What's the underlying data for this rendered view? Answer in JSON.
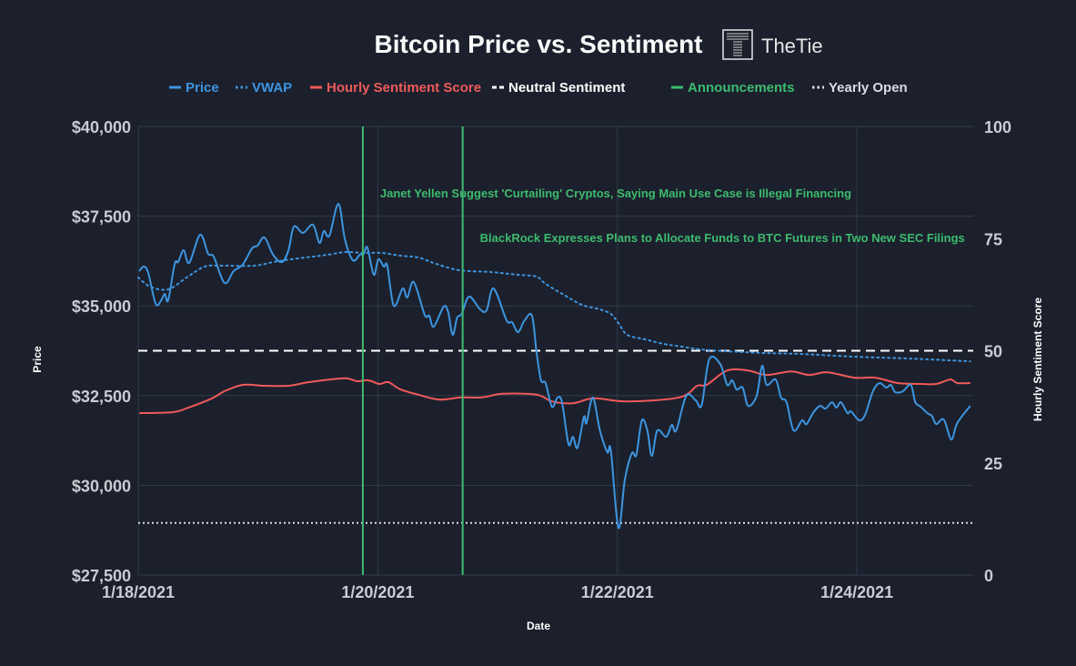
{
  "chart_data": {
    "type": "line",
    "title": "Bitcoin Price vs. Sentiment",
    "logo_text": "TheTie",
    "xlabel": "Date",
    "ylabel": "Price",
    "y2label": "Hourly Sentiment Score",
    "x_units": "hours since 1/18/2021 00:00",
    "xlim": [
      0,
      167.3
    ],
    "ylim": [
      27500,
      40000
    ],
    "y2lim": [
      0,
      100
    ],
    "grid": true,
    "legend_position": "top",
    "x_ticks": [
      {
        "value": 0,
        "label": "1/18/2021"
      },
      {
        "value": 48,
        "label": "1/20/2021"
      },
      {
        "value": 96,
        "label": "1/22/2021"
      },
      {
        "value": 144,
        "label": "1/24/2021"
      }
    ],
    "y_ticks": [
      {
        "value": 40000,
        "label": "$40,000"
      },
      {
        "value": 37500,
        "label": "$37,500"
      },
      {
        "value": 35000,
        "label": "$35,000"
      },
      {
        "value": 32500,
        "label": "$32,500"
      },
      {
        "value": 30000,
        "label": "$30,000"
      },
      {
        "value": 27500,
        "label": "$27,500"
      }
    ],
    "y2_ticks": [
      {
        "value": 100,
        "label": "100"
      },
      {
        "value": 75,
        "label": "75"
      },
      {
        "value": 50,
        "label": "50"
      },
      {
        "value": 25,
        "label": "25"
      },
      {
        "value": 0,
        "label": "0"
      }
    ],
    "legend": [
      {
        "name": "Price",
        "style": "solid",
        "color": "#3d95e0"
      },
      {
        "name": "VWAP",
        "style": "dotted",
        "color": "#3d95e0"
      },
      {
        "name": "Hourly Sentiment Score",
        "style": "solid",
        "color": "#f05a5a"
      },
      {
        "name": "Neutral Sentiment",
        "style": "dashed",
        "color": "#ffffff"
      },
      {
        "name": "Announcements",
        "style": "solid",
        "color": "#3dbb6e"
      },
      {
        "name": "Yearly Open",
        "style": "dotted",
        "color": "#d9dce2"
      }
    ],
    "series": [
      {
        "name": "Price",
        "axis": "left",
        "color": "#3d95e0",
        "points": [
          [
            0.2,
            35968
          ],
          [
            1.1,
            36095
          ],
          [
            2.0,
            35917
          ],
          [
            3.5,
            35055
          ],
          [
            4.6,
            35156
          ],
          [
            5.3,
            35334
          ],
          [
            6.0,
            35156
          ],
          [
            7.3,
            36171
          ],
          [
            8.0,
            36221
          ],
          [
            9.1,
            36551
          ],
          [
            10.2,
            36196
          ],
          [
            12.4,
            36982
          ],
          [
            14.0,
            36450
          ],
          [
            15.1,
            36374
          ],
          [
            17.3,
            35638
          ],
          [
            19.1,
            35968
          ],
          [
            20.9,
            36145
          ],
          [
            22.8,
            36602
          ],
          [
            23.9,
            36678
          ],
          [
            25.3,
            36906
          ],
          [
            27.0,
            36424
          ],
          [
            28.8,
            36221
          ],
          [
            30.1,
            36551
          ],
          [
            31.2,
            37210
          ],
          [
            33.0,
            37033
          ],
          [
            35.0,
            37261
          ],
          [
            36.3,
            36754
          ],
          [
            37.2,
            37084
          ],
          [
            38.3,
            36957
          ],
          [
            40.1,
            37844
          ],
          [
            41.4,
            36855
          ],
          [
            43.0,
            36272
          ],
          [
            44.4,
            36424
          ],
          [
            45.2,
            36450
          ],
          [
            45.9,
            36627
          ],
          [
            47.2,
            35866
          ],
          [
            48.1,
            36297
          ],
          [
            49.2,
            36095
          ],
          [
            49.9,
            36120
          ],
          [
            51.2,
            35004
          ],
          [
            53.0,
            35486
          ],
          [
            53.9,
            35232
          ],
          [
            55.2,
            35663
          ],
          [
            57.4,
            34750
          ],
          [
            58.3,
            34725
          ],
          [
            59.2,
            34421
          ],
          [
            61.2,
            34979
          ],
          [
            62.1,
            34827
          ],
          [
            63.0,
            34193
          ],
          [
            63.9,
            34674
          ],
          [
            64.8,
            34775
          ],
          [
            66.3,
            35258
          ],
          [
            68.5,
            34903
          ],
          [
            69.8,
            34877
          ],
          [
            71.2,
            35486
          ],
          [
            73.8,
            34598
          ],
          [
            74.9,
            34547
          ],
          [
            76.1,
            34269
          ],
          [
            77.4,
            34598
          ],
          [
            78.9,
            34725
          ],
          [
            79.8,
            33711
          ],
          [
            80.7,
            32925
          ],
          [
            81.6,
            32849
          ],
          [
            82.9,
            32189
          ],
          [
            84.0,
            32443
          ],
          [
            84.9,
            32316
          ],
          [
            86.2,
            31149
          ],
          [
            87.1,
            31352
          ],
          [
            88.0,
            31048
          ],
          [
            89.3,
            31910
          ],
          [
            89.8,
            31733
          ],
          [
            91.1,
            32443
          ],
          [
            92.5,
            31530
          ],
          [
            94.0,
            30921
          ],
          [
            94.7,
            30971
          ],
          [
            96.2,
            28816
          ],
          [
            97.5,
            30160
          ],
          [
            98.9,
            30896
          ],
          [
            99.8,
            30845
          ],
          [
            100.9,
            31809
          ],
          [
            102.0,
            31530
          ],
          [
            102.9,
            30820
          ],
          [
            104.0,
            31530
          ],
          [
            105.8,
            31352
          ],
          [
            106.9,
            31682
          ],
          [
            107.8,
            31530
          ],
          [
            109.8,
            32493
          ],
          [
            111.7,
            32367
          ],
          [
            112.9,
            32240
          ],
          [
            114.4,
            33508
          ],
          [
            116.6,
            33381
          ],
          [
            118.0,
            32798
          ],
          [
            119.0,
            32925
          ],
          [
            119.9,
            32671
          ],
          [
            121.1,
            32722
          ],
          [
            122.2,
            32214
          ],
          [
            123.9,
            32493
          ],
          [
            125.0,
            33330
          ],
          [
            125.9,
            32798
          ],
          [
            127.7,
            32950
          ],
          [
            128.8,
            32443
          ],
          [
            129.9,
            32316
          ],
          [
            131.3,
            31530
          ],
          [
            133.0,
            31809
          ],
          [
            133.9,
            31707
          ],
          [
            135.3,
            32037
          ],
          [
            136.6,
            32214
          ],
          [
            137.7,
            32138
          ],
          [
            139.0,
            32316
          ],
          [
            139.9,
            32164
          ],
          [
            140.8,
            32316
          ],
          [
            142.1,
            32012
          ],
          [
            142.8,
            32062
          ],
          [
            144.5,
            31809
          ],
          [
            145.7,
            31986
          ],
          [
            147.2,
            32620
          ],
          [
            148.5,
            32848
          ],
          [
            149.9,
            32722
          ],
          [
            150.8,
            32798
          ],
          [
            151.7,
            32595
          ],
          [
            153.2,
            32620
          ],
          [
            154.8,
            32798
          ],
          [
            155.7,
            32316
          ],
          [
            156.8,
            32189
          ],
          [
            158.1,
            32012
          ],
          [
            159.0,
            31936
          ],
          [
            159.9,
            31707
          ],
          [
            161.4,
            31834
          ],
          [
            162.9,
            31276
          ],
          [
            164.1,
            31733
          ],
          [
            166.7,
            32214
          ]
        ]
      },
      {
        "name": "VWAP",
        "axis": "left",
        "color": "#3d95e0",
        "points": [
          [
            0,
            35790
          ],
          [
            2.4,
            35537
          ],
          [
            6.0,
            35461
          ],
          [
            9.7,
            35790
          ],
          [
            13.3,
            36095
          ],
          [
            16.9,
            36120
          ],
          [
            23.3,
            36120
          ],
          [
            27.0,
            36221
          ],
          [
            30.6,
            36297
          ],
          [
            37.9,
            36424
          ],
          [
            41.5,
            36500
          ],
          [
            45.2,
            36475
          ],
          [
            48.8,
            36475
          ],
          [
            52.5,
            36399
          ],
          [
            56.1,
            36348
          ],
          [
            59.7,
            36171
          ],
          [
            64.3,
            35993
          ],
          [
            70.7,
            35942
          ],
          [
            76.1,
            35866
          ],
          [
            79.8,
            35816
          ],
          [
            81.6,
            35613
          ],
          [
            85.3,
            35308
          ],
          [
            88.9,
            35029
          ],
          [
            92.5,
            34903
          ],
          [
            94.7,
            34776
          ],
          [
            96.2,
            34522
          ],
          [
            98.0,
            34193
          ],
          [
            101.6,
            34066
          ],
          [
            105.3,
            33939
          ],
          [
            108.9,
            33863
          ],
          [
            112.6,
            33787
          ],
          [
            118.0,
            33736
          ],
          [
            125.3,
            33686
          ],
          [
            132.6,
            33660
          ],
          [
            143.5,
            33584
          ],
          [
            154.5,
            33533
          ],
          [
            166.7,
            33457
          ]
        ]
      },
      {
        "name": "Hourly Sentiment Score",
        "axis": "right",
        "color": "#f05a5a",
        "points": [
          [
            0.2,
            36.1
          ],
          [
            6.9,
            36.3
          ],
          [
            10.0,
            37.3
          ],
          [
            14.8,
            39.4
          ],
          [
            17.3,
            41.0
          ],
          [
            21.0,
            42.4
          ],
          [
            25.2,
            42.2
          ],
          [
            30.1,
            42.2
          ],
          [
            34.2,
            43.0
          ],
          [
            40.3,
            43.8
          ],
          [
            42.1,
            43.8
          ],
          [
            43.9,
            43.2
          ],
          [
            46.1,
            43.4
          ],
          [
            48.3,
            42.6
          ],
          [
            50.1,
            43.0
          ],
          [
            52.5,
            41.4
          ],
          [
            56.1,
            40.2
          ],
          [
            60.3,
            39.1
          ],
          [
            64.7,
            39.6
          ],
          [
            68.9,
            39.6
          ],
          [
            73.0,
            40.4
          ],
          [
            79.8,
            40.2
          ],
          [
            82.9,
            38.7
          ],
          [
            87.1,
            38.3
          ],
          [
            91.3,
            39.4
          ],
          [
            98.0,
            38.7
          ],
          [
            108.4,
            39.6
          ],
          [
            112.0,
            42.2
          ],
          [
            113.9,
            42.4
          ],
          [
            118.0,
            45.6
          ],
          [
            122.2,
            45.6
          ],
          [
            125.9,
            44.6
          ],
          [
            130.8,
            45.4
          ],
          [
            134.4,
            44.6
          ],
          [
            138.1,
            45.2
          ],
          [
            143.5,
            44.0
          ],
          [
            147.7,
            44.0
          ],
          [
            152.1,
            42.8
          ],
          [
            156.8,
            42.6
          ],
          [
            159.9,
            42.6
          ],
          [
            162.7,
            43.6
          ],
          [
            164.1,
            42.8
          ],
          [
            166.7,
            42.8
          ]
        ]
      }
    ],
    "reference_lines": {
      "neutral_sentiment": 50,
      "yearly_open": 28950
    },
    "announcements": [
      {
        "x": 45.0,
        "label": "Janet Yellen Suggest 'Curtailing' Cryptos, Saying Main Use Case is Illegal Financing"
      },
      {
        "x": 65.0,
        "label": "BlackRock Expresses Plans to Allocate Funds to BTC Futures in Two New SEC Filings"
      }
    ],
    "colors": {
      "background": "#1b202c",
      "grid": "#333a48",
      "price": "#3d95e0",
      "sentiment": "#f05a5a",
      "announcement": "#3dbb6e",
      "neutral": "#ffffff",
      "yearly_open": "#d9dce2"
    }
  }
}
